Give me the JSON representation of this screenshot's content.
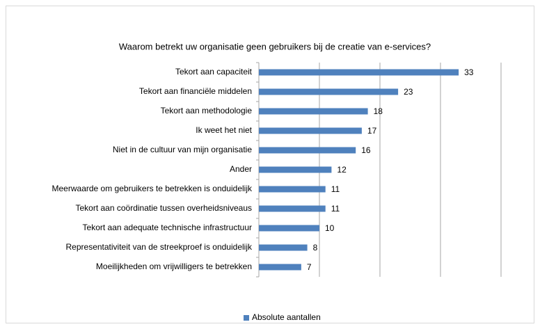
{
  "chart_data": {
    "type": "barh",
    "title": "Waarom betrekt uw organisatie geen gebruikers bij de creatie van e-services?",
    "categories": [
      "Tekort aan capaciteit",
      "Tekort aan financiële middelen",
      "Tekort aan methodologie",
      "Ik weet het niet",
      "Niet in de cultuur van mijn organisatie",
      "Ander",
      "Meerwaarde om gebruikers te betrekken is onduidelijk",
      "Tekort aan coördinatie tussen overheidsniveaus",
      "Tekort aan adequate technische infrastructuur",
      "Representativiteit van de streekproef is onduidelijk",
      "Moeilijkheden om vrijwilligers te betrekken"
    ],
    "series": [
      {
        "name": "Absolute aantallen",
        "color": "#4f81bd",
        "values": [
          33,
          23,
          18,
          17,
          16,
          12,
          11,
          11,
          10,
          8,
          7
        ]
      }
    ],
    "xlim": [
      0,
      40
    ],
    "xticks": [
      0,
      10,
      20,
      30,
      40
    ],
    "grid": true,
    "legend": "bottom"
  }
}
